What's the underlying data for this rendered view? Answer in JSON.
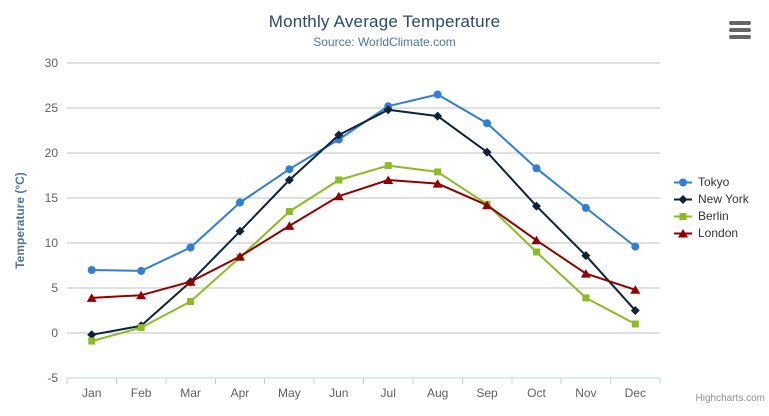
{
  "chart_data": {
    "type": "line",
    "title": "Monthly Average Temperature",
    "subtitle": "Source: WorldClimate.com",
    "xlabel": "",
    "ylabel": "Temperature (°C)",
    "ylim": [
      -5,
      30
    ],
    "yticks": [
      -5,
      0,
      5,
      10,
      15,
      20,
      25,
      30
    ],
    "grid": true,
    "legend_position": "right",
    "categories": [
      "Jan",
      "Feb",
      "Mar",
      "Apr",
      "May",
      "Jun",
      "Jul",
      "Aug",
      "Sep",
      "Oct",
      "Nov",
      "Dec"
    ],
    "series": [
      {
        "name": "Tokyo",
        "color": "#2f7ed8",
        "marker": "circle",
        "values": [
          7.0,
          6.9,
          9.5,
          14.5,
          18.2,
          21.5,
          25.2,
          26.5,
          23.3,
          18.3,
          13.9,
          9.6
        ]
      },
      {
        "name": "New York",
        "color": "#0d233a",
        "marker": "diamond",
        "values": [
          -0.2,
          0.8,
          5.7,
          11.3,
          17.0,
          22.0,
          24.8,
          24.1,
          20.1,
          14.1,
          8.6,
          2.5
        ]
      },
      {
        "name": "Berlin",
        "color": "#8bbc21",
        "marker": "square",
        "values": [
          -0.9,
          0.6,
          3.5,
          8.4,
          13.5,
          17.0,
          18.6,
          17.9,
          14.3,
          9.0,
          3.9,
          1.0
        ]
      },
      {
        "name": "London",
        "color": "#910000",
        "marker": "triangle",
        "values": [
          3.9,
          4.2,
          5.7,
          8.5,
          11.9,
          15.2,
          17.0,
          16.6,
          14.2,
          10.3,
          6.6,
          4.8
        ]
      }
    ],
    "colors": {
      "grid_line": "#c0c0c0",
      "axis_line": "#c0d0e0",
      "tick_label": "#606060",
      "title": "#274b6d",
      "subtitle": "#4d759e",
      "axis_title": "#4d759e"
    }
  },
  "credits": {
    "label": "Highcharts.com"
  }
}
